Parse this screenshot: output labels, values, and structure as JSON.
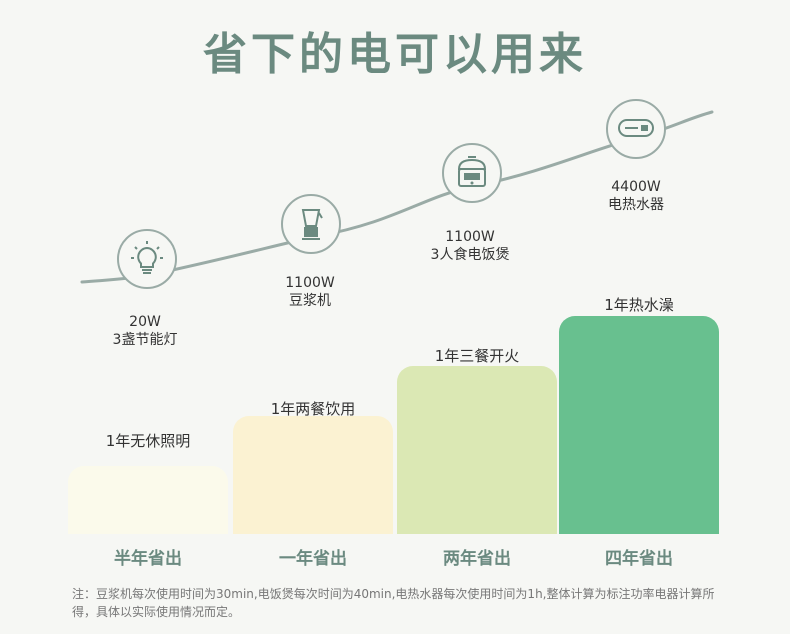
{
  "title": "省下的电可以用来",
  "devices": [
    {
      "power": "20W",
      "name": "3盏节能灯",
      "icon": "lightbulb-icon"
    },
    {
      "power": "1100W",
      "name": "豆浆机",
      "icon": "blender-icon"
    },
    {
      "power": "1100W",
      "name": "3人食电饭煲",
      "icon": "rice-cooker-icon"
    },
    {
      "power": "4400W",
      "name": "电热水器",
      "icon": "water-heater-icon"
    }
  ],
  "chart_data": {
    "type": "bar",
    "categories": [
      "半年省出",
      "一年省出",
      "两年省出",
      "四年省出"
    ],
    "values": [
      0.5,
      1,
      2,
      4
    ],
    "bar_labels": [
      "1年无休照明",
      "1年两餐饮用",
      "1年三餐开火",
      "1年热水澡"
    ],
    "colors": [
      "#fbfaeb",
      "#fbf2d2",
      "#dbe8b4",
      "#68c08f"
    ]
  },
  "footnote": "注：豆浆机每次使用时间为30min,电饭煲每次时间为40min,电热水器每次使用时间为1h,整体计算为标注功率电器计算所得，具体以实际使用情况而定。",
  "colors": {
    "accent": "#6b8a80",
    "line": "#9aaba6",
    "background": "#f6f7f4"
  }
}
